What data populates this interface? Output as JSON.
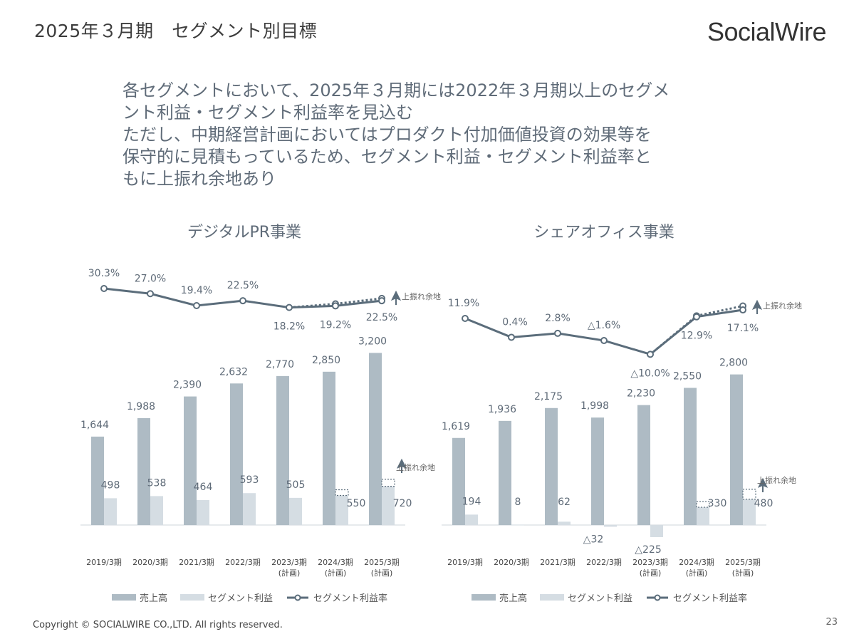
{
  "page": {
    "title": "2025年３月期　セグメント別目標",
    "logo": "SocialWire",
    "lead": [
      "各セグメントにおいて、2025年３月期には2022年３月期以上のセグメ",
      "ント利益・セグメント利益率を見込む",
      "ただし、中期経営計画においてはプロダクト付加価値投資の効果等を",
      "保守的に見積もっているため、セグメント利益・セグメント利益率と",
      "もに上振れ余地あり"
    ],
    "footer": "Copyright © SOCIALWIRE CO.,LTD. All rights reserved.",
    "page_number": "23"
  },
  "legend": {
    "sales": "売上高",
    "profit": "セグメント利益",
    "margin": "セグメント利益率"
  },
  "colors": {
    "sales_bar": "#aebbc4",
    "profit_bar": "#d5dde3",
    "margin_line": "#5b6d7b",
    "label": "#5f6b78",
    "axis_label": "#444444"
  },
  "chart_data": [
    {
      "type": "bar",
      "title": "デジタルPR事業",
      "categories": [
        "2019/3期",
        "2020/3期",
        "2021/3期",
        "2022/3期",
        "2023/3期",
        "2024/3期",
        "2025/3期"
      ],
      "category_sublabels": [
        "",
        "",
        "",
        "",
        "(計画)",
        "(計画)",
        "(計画)"
      ],
      "series": [
        {
          "name": "売上高",
          "values": [
            1644,
            1988,
            2390,
            2632,
            2770,
            2850,
            3200
          ],
          "labels": [
            "1,644",
            "1,988",
            "2,390",
            "2,632",
            "2,770",
            "2,850",
            "3,200"
          ]
        },
        {
          "name": "セグメント利益",
          "values": [
            498,
            538,
            464,
            593,
            505,
            550,
            720
          ],
          "labels": [
            "498",
            "538",
            "464",
            "593",
            "505",
            "550",
            "720"
          ]
        },
        {
          "name": "セグメント利益率",
          "values": [
            30.3,
            27.0,
            19.4,
            22.5,
            18.2,
            19.2,
            22.5
          ],
          "labels": [
            "30.3%",
            "27.0%",
            "19.4%",
            "22.5%",
            "18.2%",
            "19.2%",
            "22.5%"
          ]
        }
      ],
      "upside_note": "上振れ余地"
    },
    {
      "type": "bar",
      "title": "シェアオフィス事業",
      "categories": [
        "2019/3期",
        "2020/3期",
        "2021/3期",
        "2022/3期",
        "2023/3期",
        "2024/3期",
        "2025/3期"
      ],
      "category_sublabels": [
        "",
        "",
        "",
        "",
        "(計画)",
        "(計画)",
        "(計画)"
      ],
      "series": [
        {
          "name": "売上高",
          "values": [
            1619,
            1936,
            2175,
            1998,
            2230,
            2550,
            2800
          ],
          "labels": [
            "1,619",
            "1,936",
            "2,175",
            "1,998",
            "2,230",
            "2,550",
            "2,800"
          ]
        },
        {
          "name": "セグメント利益",
          "values": [
            194,
            8,
            62,
            -32,
            -225,
            330,
            480
          ],
          "labels": [
            "194",
            "8",
            "62",
            "△32",
            "△225",
            "330",
            "480"
          ]
        },
        {
          "name": "セグメント利益率",
          "values": [
            11.9,
            0.4,
            2.8,
            -1.6,
            -10.0,
            12.9,
            17.1
          ],
          "labels": [
            "11.9%",
            "0.4%",
            "2.8%",
            "△1.6%",
            "△10.0%",
            "12.9%",
            "17.1%"
          ]
        }
      ],
      "upside_note": "上振れ余地"
    }
  ]
}
